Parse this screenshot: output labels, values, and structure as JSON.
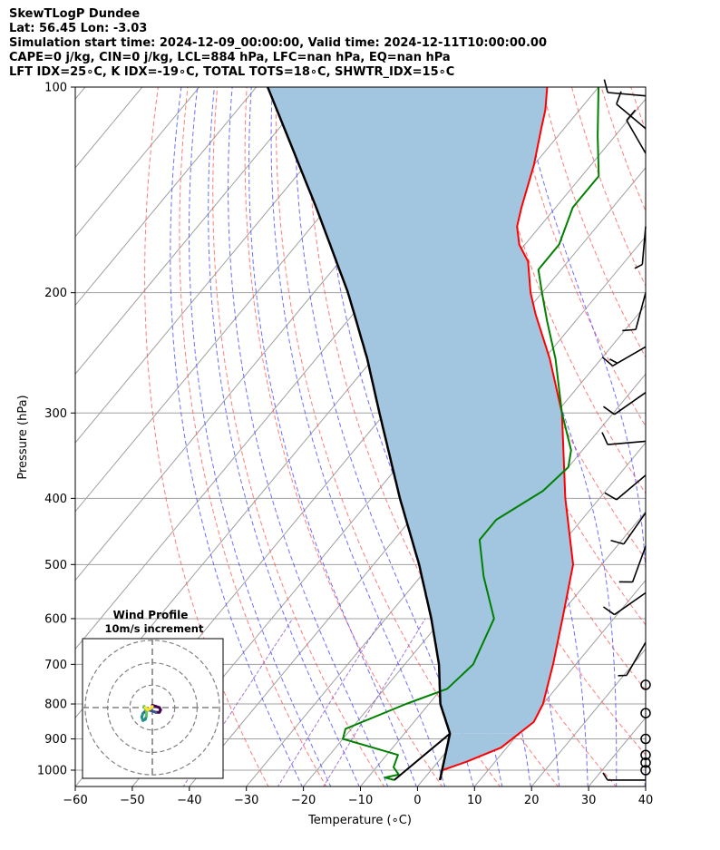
{
  "header": {
    "title": "SkewTLogP Dundee",
    "location": "Lat: 56.45   Lon: -3.03",
    "times": "Simulation start time: 2024-12-09_00:00:00, Valid time: 2024-12-11T10:00:00.00",
    "params": "CAPE=0 j/kg, CIN=0 j/kg, LCL=884 hPa, LFC=nan hPa, EQ=nan hPa",
    "indices": "LFT IDX=25∘C, K IDX=-19∘C, TOTAL TOTS=18∘C, SHWTR_IDX=15∘C"
  },
  "inset": {
    "title": "Wind Profile",
    "subtitle": "10m/s increment"
  },
  "colors": {
    "temperature": "#ff0000",
    "dewpoint": "#008000",
    "parcel": "#000000",
    "cape_fill": "#a3c6e0",
    "dry_adiabat": "#ff5050",
    "moist_adiabat": "#4a4aff",
    "mixing_ratio": "#8040c0",
    "isotherm": "#a0a0a0"
  },
  "chart_data": {
    "type": "line",
    "skew": "skew-T log-p",
    "xlabel": "Temperature (∘C)",
    "ylabel": "Pressure (hPa)",
    "xlim": [
      -60,
      40
    ],
    "ylim": [
      1050,
      100
    ],
    "y_scale": "log",
    "grid": true,
    "x_ticks": [
      "−60",
      "−50",
      "−40",
      "−30",
      "−20",
      "−10",
      "0",
      "10",
      "20",
      "30",
      "40"
    ],
    "y_ticks": [
      "100",
      "200",
      "300",
      "400",
      "500",
      "600",
      "700",
      "800",
      "900",
      "1000"
    ],
    "y_tick_values": [
      100,
      200,
      300,
      400,
      500,
      600,
      700,
      800,
      900,
      1000
    ],
    "series": [
      {
        "role": "temperature",
        "points": [
          [
            1034,
            3
          ],
          [
            1000,
            2
          ],
          [
            972,
            5
          ],
          [
            927,
            9
          ],
          [
            850,
            11
          ],
          [
            800,
            10
          ],
          [
            700,
            6
          ],
          [
            600,
            1
          ],
          [
            500,
            -5
          ],
          [
            400,
            -16
          ],
          [
            300,
            -29
          ],
          [
            250,
            -39
          ],
          [
            215,
            -48
          ],
          [
            200,
            -52
          ],
          [
            180,
            -57
          ],
          [
            170,
            -61
          ],
          [
            160,
            -64
          ],
          [
            150,
            -66
          ],
          [
            130,
            -70
          ],
          [
            115,
            -74
          ],
          [
            108,
            -76
          ],
          [
            100,
            -79
          ]
        ]
      },
      {
        "role": "dewpoint",
        "points": [
          [
            1034,
            -5
          ],
          [
            1025,
            -7
          ],
          [
            1015,
            -5
          ],
          [
            990,
            -7
          ],
          [
            950,
            -8
          ],
          [
            900,
            -20
          ],
          [
            870,
            -21
          ],
          [
            800,
            -14
          ],
          [
            760,
            -9
          ],
          [
            700,
            -8
          ],
          [
            600,
            -11
          ],
          [
            520,
            -19
          ],
          [
            460,
            -25
          ],
          [
            430,
            -25
          ],
          [
            390,
            -21
          ],
          [
            360,
            -20
          ],
          [
            340,
            -22
          ],
          [
            300,
            -29
          ],
          [
            250,
            -38
          ],
          [
            220,
            -45
          ],
          [
            200,
            -50
          ],
          [
            185,
            -54
          ],
          [
            170,
            -54
          ],
          [
            150,
            -57
          ],
          [
            135,
            -57
          ],
          [
            118,
            -63
          ],
          [
            100,
            -70
          ]
        ]
      },
      {
        "role": "parcel",
        "points": [
          [
            1034,
            3
          ],
          [
            884,
            -2
          ],
          [
            800,
            -8
          ],
          [
            700,
            -14
          ],
          [
            600,
            -22
          ],
          [
            500,
            -32
          ],
          [
            400,
            -45
          ],
          [
            300,
            -61
          ],
          [
            250,
            -71
          ],
          [
            200,
            -84
          ],
          [
            150,
            -102
          ],
          [
            100,
            -128
          ]
        ]
      },
      {
        "role": "surface-branch",
        "points": [
          [
            1034,
            -5
          ],
          [
            884,
            -2
          ]
        ]
      }
    ],
    "wind_barbs": [
      {
        "p": 1034,
        "dir": 270,
        "spd": 3
      },
      {
        "p": 1000,
        "dir": 0,
        "spd": 0
      },
      {
        "p": 975,
        "dir": 0,
        "spd": 0
      },
      {
        "p": 950,
        "dir": 0,
        "spd": 0
      },
      {
        "p": 900,
        "dir": 0,
        "spd": 0
      },
      {
        "p": 825,
        "dir": 0,
        "spd": 0
      },
      {
        "p": 750,
        "dir": 0,
        "spd": 0
      },
      {
        "p": 650,
        "dir": 210,
        "spd": 5
      },
      {
        "p": 550,
        "dir": 235,
        "spd": 10
      },
      {
        "p": 470,
        "dir": 200,
        "spd": 10
      },
      {
        "p": 420,
        "dir": 215,
        "spd": 10
      },
      {
        "p": 370,
        "dir": 230,
        "spd": 10
      },
      {
        "p": 330,
        "dir": 265,
        "spd": 10
      },
      {
        "p": 280,
        "dir": 235,
        "spd": 10
      },
      {
        "p": 240,
        "dir": 240,
        "spd": 15
      },
      {
        "p": 200,
        "dir": 195,
        "spd": 10
      },
      {
        "p": 160,
        "dir": 185,
        "spd": 5
      },
      {
        "p": 125,
        "dir": 330,
        "spd": 10
      },
      {
        "p": 115,
        "dir": 310,
        "spd": 10
      },
      {
        "p": 103,
        "dir": 275,
        "spd": 10
      }
    ],
    "hodograph": {
      "rings": [
        10,
        20,
        30
      ],
      "points": [
        [
          0,
          2
        ],
        [
          3,
          1
        ],
        [
          6,
          0
        ],
        [
          7,
          -2
        ],
        [
          6,
          -4
        ],
        [
          3,
          -4
        ],
        [
          0,
          -3
        ],
        [
          -3,
          -2
        ],
        [
          -6,
          -3
        ],
        [
          -8,
          -5
        ],
        [
          -9,
          -8
        ],
        [
          -8,
          -11
        ],
        [
          -6,
          -10
        ],
        [
          -5,
          -7
        ],
        [
          -5,
          -4
        ],
        [
          -6,
          -1
        ],
        [
          -7,
          1
        ],
        [
          -6,
          0
        ],
        [
          -4,
          -2
        ],
        [
          -2,
          -1
        ],
        [
          0,
          1
        ]
      ]
    }
  }
}
